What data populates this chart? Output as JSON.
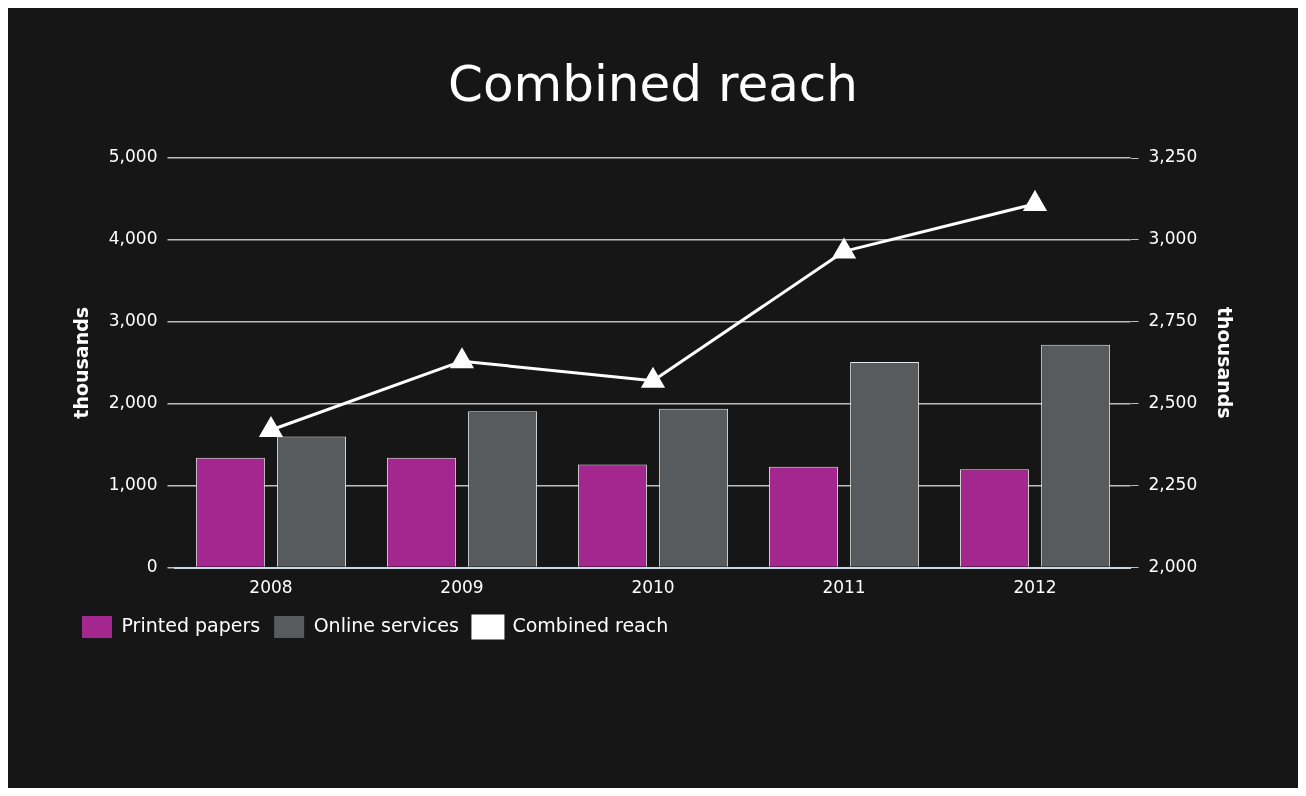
{
  "chart_data": {
    "type": "bar",
    "title": "Combined reach",
    "ylabel": "thousands",
    "y2label": "thousands",
    "categories": [
      "2008",
      "2009",
      "2010",
      "2011",
      "2012"
    ],
    "series": [
      {
        "name": "Printed papers",
        "color": "#a3278f",
        "values": [
          1340,
          1340,
          1260,
          1230,
          1200
        ]
      },
      {
        "name": "Online services",
        "color": "#575b5e",
        "values": [
          1600,
          1910,
          1940,
          2510,
          2720
        ]
      },
      {
        "name": "Combined reach",
        "type": "line",
        "axis": "y2",
        "color": "#ffffff",
        "marker": "triangle",
        "values": [
          2420,
          2630,
          2570,
          2965,
          3110
        ]
      }
    ],
    "ylim": [
      0,
      5000
    ],
    "yticks": [
      {
        "value": 0,
        "label": "0"
      },
      {
        "value": 1000,
        "label": "1,000"
      },
      {
        "value": 2000,
        "label": "2,000"
      },
      {
        "value": 3000,
        "label": "3,000"
      },
      {
        "value": 4000,
        "label": "4,000"
      },
      {
        "value": 5000,
        "label": "5,000"
      }
    ],
    "y2lim": [
      2000,
      3250
    ],
    "y2ticks": [
      {
        "value": 2000,
        "label": "2,000"
      },
      {
        "value": 2250,
        "label": "2,250"
      },
      {
        "value": 2500,
        "label": "2,500"
      },
      {
        "value": 2750,
        "label": "2,750"
      },
      {
        "value": 3000,
        "label": "3,000"
      },
      {
        "value": 3250,
        "label": "3,250"
      }
    ],
    "grid": "y",
    "legend": "bottom"
  }
}
